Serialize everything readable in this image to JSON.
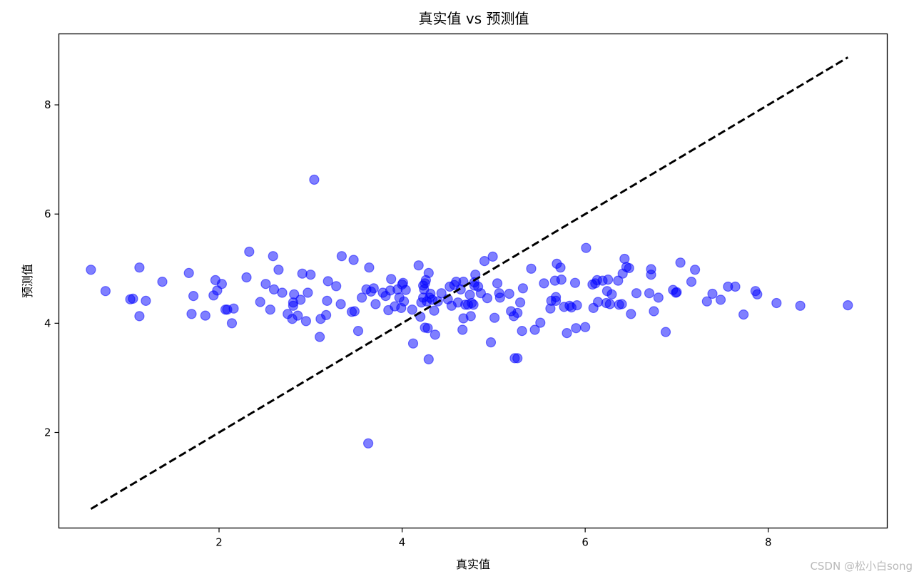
{
  "chart_data": {
    "type": "scatter",
    "title": "真实值 vs 预测值",
    "xlabel": "真实值",
    "ylabel": "预测值",
    "xlim": [
      0.25,
      9.3
    ],
    "ylim": [
      0.25,
      9.3
    ],
    "xticks": [
      2,
      4,
      6,
      8
    ],
    "yticks": [
      2,
      4,
      6,
      8
    ],
    "grid": false,
    "marker_color": "#0000ff",
    "marker_alpha": 0.5,
    "reference_line": {
      "style": "dashed",
      "color": "#000000",
      "from": [
        0.6,
        0.6
      ],
      "to": [
        8.87,
        8.87
      ]
    },
    "points": [
      [
        0.6,
        4.98
      ],
      [
        0.76,
        4.59
      ],
      [
        1.03,
        4.44
      ],
      [
        1.06,
        4.45
      ],
      [
        1.13,
        4.13
      ],
      [
        1.13,
        5.02
      ],
      [
        1.2,
        4.41
      ],
      [
        1.38,
        4.76
      ],
      [
        1.67,
        4.92
      ],
      [
        1.7,
        4.17
      ],
      [
        1.72,
        4.5
      ],
      [
        1.85,
        4.14
      ],
      [
        1.94,
        4.51
      ],
      [
        1.96,
        4.79
      ],
      [
        1.98,
        4.6
      ],
      [
        2.03,
        4.72
      ],
      [
        2.07,
        4.25
      ],
      [
        2.09,
        4.25
      ],
      [
        2.14,
        4.0
      ],
      [
        2.16,
        4.27
      ],
      [
        2.3,
        4.84
      ],
      [
        2.33,
        5.31
      ],
      [
        2.45,
        4.39
      ],
      [
        2.51,
        4.72
      ],
      [
        2.56,
        4.25
      ],
      [
        2.59,
        5.23
      ],
      [
        2.6,
        4.62
      ],
      [
        2.65,
        4.98
      ],
      [
        2.69,
        4.56
      ],
      [
        2.75,
        4.17
      ],
      [
        2.8,
        4.08
      ],
      [
        2.81,
        4.38
      ],
      [
        2.81,
        4.32
      ],
      [
        2.82,
        4.53
      ],
      [
        2.86,
        4.14
      ],
      [
        2.89,
        4.43
      ],
      [
        2.91,
        4.91
      ],
      [
        2.95,
        4.04
      ],
      [
        2.97,
        4.56
      ],
      [
        3.0,
        4.89
      ],
      [
        3.04,
        6.63
      ],
      [
        3.1,
        3.75
      ],
      [
        3.11,
        4.08
      ],
      [
        3.17,
        4.15
      ],
      [
        3.18,
        4.41
      ],
      [
        3.19,
        4.77
      ],
      [
        3.28,
        4.68
      ],
      [
        3.33,
        4.35
      ],
      [
        3.34,
        5.23
      ],
      [
        3.45,
        4.21
      ],
      [
        3.47,
        5.16
      ],
      [
        3.48,
        4.22
      ],
      [
        3.52,
        3.86
      ],
      [
        3.56,
        4.47
      ],
      [
        3.61,
        4.62
      ],
      [
        3.63,
        1.8
      ],
      [
        3.64,
        5.02
      ],
      [
        3.66,
        4.58
      ],
      [
        3.69,
        4.64
      ],
      [
        3.71,
        4.35
      ],
      [
        3.79,
        4.56
      ],
      [
        3.82,
        4.5
      ],
      [
        3.85,
        4.24
      ],
      [
        3.87,
        4.6
      ],
      [
        3.88,
        4.81
      ],
      [
        3.92,
        4.31
      ],
      [
        3.95,
        4.62
      ],
      [
        3.97,
        4.47
      ],
      [
        3.99,
        4.28
      ],
      [
        4.0,
        4.71
      ],
      [
        4.01,
        4.74
      ],
      [
        4.02,
        4.4
      ],
      [
        4.04,
        4.61
      ],
      [
        4.11,
        4.25
      ],
      [
        4.12,
        3.63
      ],
      [
        4.18,
        5.06
      ],
      [
        4.2,
        4.12
      ],
      [
        4.21,
        4.38
      ],
      [
        4.23,
        4.47
      ],
      [
        4.23,
        4.69
      ],
      [
        4.24,
        4.62
      ],
      [
        4.25,
        3.92
      ],
      [
        4.25,
        4.73
      ],
      [
        4.26,
        4.79
      ],
      [
        4.27,
        4.4
      ],
      [
        4.28,
        3.91
      ],
      [
        4.29,
        4.92
      ],
      [
        4.29,
        3.34
      ],
      [
        4.3,
        4.47
      ],
      [
        4.31,
        4.54
      ],
      [
        4.33,
        4.43
      ],
      [
        4.35,
        4.23
      ],
      [
        4.36,
        3.79
      ],
      [
        4.39,
        4.4
      ],
      [
        4.43,
        4.55
      ],
      [
        4.5,
        4.44
      ],
      [
        4.52,
        4.67
      ],
      [
        4.54,
        4.32
      ],
      [
        4.57,
        4.7
      ],
      [
        4.59,
        4.76
      ],
      [
        4.61,
        4.38
      ],
      [
        4.64,
        4.62
      ],
      [
        4.66,
        3.88
      ],
      [
        4.67,
        4.09
      ],
      [
        4.67,
        4.76
      ],
      [
        4.69,
        4.34
      ],
      [
        4.72,
        4.34
      ],
      [
        4.74,
        4.52
      ],
      [
        4.75,
        4.13
      ],
      [
        4.76,
        4.37
      ],
      [
        4.78,
        4.34
      ],
      [
        4.79,
        4.75
      ],
      [
        4.79,
        4.69
      ],
      [
        4.8,
        4.89
      ],
      [
        4.83,
        4.67
      ],
      [
        4.86,
        4.55
      ],
      [
        4.9,
        5.14
      ],
      [
        4.93,
        4.46
      ],
      [
        4.97,
        3.65
      ],
      [
        4.99,
        5.22
      ],
      [
        5.01,
        4.1
      ],
      [
        5.04,
        4.73
      ],
      [
        5.06,
        4.55
      ],
      [
        5.07,
        4.47
      ],
      [
        5.17,
        4.54
      ],
      [
        5.19,
        4.22
      ],
      [
        5.22,
        4.13
      ],
      [
        5.23,
        3.36
      ],
      [
        5.26,
        4.19
      ],
      [
        5.26,
        3.36
      ],
      [
        5.29,
        4.38
      ],
      [
        5.31,
        3.86
      ],
      [
        5.32,
        4.64
      ],
      [
        5.41,
        5.0
      ],
      [
        5.45,
        3.88
      ],
      [
        5.51,
        4.01
      ],
      [
        5.55,
        4.73
      ],
      [
        5.62,
        4.27
      ],
      [
        5.63,
        4.41
      ],
      [
        5.67,
        4.78
      ],
      [
        5.68,
        4.48
      ],
      [
        5.68,
        4.41
      ],
      [
        5.69,
        5.09
      ],
      [
        5.73,
        5.02
      ],
      [
        5.74,
        4.8
      ],
      [
        5.77,
        4.3
      ],
      [
        5.8,
        3.82
      ],
      [
        5.83,
        4.32
      ],
      [
        5.85,
        4.29
      ],
      [
        5.89,
        4.74
      ],
      [
        5.9,
        3.91
      ],
      [
        5.91,
        4.33
      ],
      [
        6.0,
        3.93
      ],
      [
        6.01,
        5.38
      ],
      [
        6.08,
        4.71
      ],
      [
        6.09,
        4.28
      ],
      [
        6.11,
        4.73
      ],
      [
        6.13,
        4.79
      ],
      [
        6.14,
        4.39
      ],
      [
        6.19,
        4.78
      ],
      [
        6.23,
        4.37
      ],
      [
        6.24,
        4.59
      ],
      [
        6.25,
        4.8
      ],
      [
        6.27,
        4.35
      ],
      [
        6.29,
        4.53
      ],
      [
        6.36,
        4.78
      ],
      [
        6.37,
        4.34
      ],
      [
        6.4,
        4.35
      ],
      [
        6.41,
        4.91
      ],
      [
        6.43,
        5.18
      ],
      [
        6.45,
        5.03
      ],
      [
        6.48,
        5.01
      ],
      [
        6.5,
        4.17
      ],
      [
        6.56,
        4.55
      ],
      [
        6.7,
        4.55
      ],
      [
        6.72,
        4.99
      ],
      [
        6.72,
        4.89
      ],
      [
        6.75,
        4.22
      ],
      [
        6.8,
        4.47
      ],
      [
        6.88,
        3.84
      ],
      [
        6.96,
        4.61
      ],
      [
        6.99,
        4.56
      ],
      [
        7.0,
        4.57
      ],
      [
        7.04,
        5.11
      ],
      [
        7.16,
        4.76
      ],
      [
        7.2,
        4.98
      ],
      [
        7.33,
        4.4
      ],
      [
        7.39,
        4.54
      ],
      [
        7.48,
        4.43
      ],
      [
        7.56,
        4.67
      ],
      [
        7.64,
        4.67
      ],
      [
        7.73,
        4.16
      ],
      [
        7.86,
        4.59
      ],
      [
        7.88,
        4.53
      ],
      [
        8.09,
        4.37
      ],
      [
        8.35,
        4.32
      ],
      [
        8.87,
        4.33
      ]
    ]
  },
  "watermark": "CSDN @松小白song"
}
